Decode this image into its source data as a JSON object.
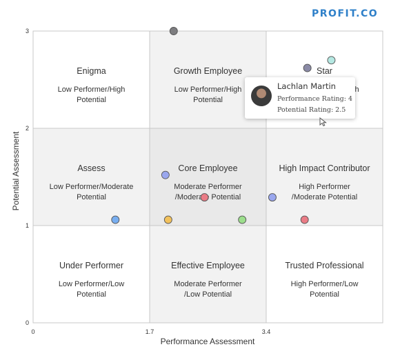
{
  "brand": {
    "logo_text": "PROFIT.CO",
    "color": "#2f80c9"
  },
  "chart_data": {
    "type": "scatter",
    "xlabel": "Performance Assessment",
    "ylabel": "Potential Assessment",
    "x_ticks": [
      "0",
      "1.7",
      "3.4"
    ],
    "y_ticks": [
      "0",
      "1",
      "2",
      "3"
    ],
    "xlim": [
      0,
      5.1
    ],
    "ylim": [
      0,
      3
    ],
    "grid": {
      "x": [
        1.7,
        3.4
      ],
      "y": [
        1,
        2
      ]
    },
    "cells": [
      {
        "col": 0,
        "row": 2,
        "title": "Enigma",
        "desc1": "Low Performer/High",
        "desc2": "Potential",
        "shade": "#ffffff"
      },
      {
        "col": 1,
        "row": 2,
        "title": "Growth Employee",
        "desc1": "Low Performer/High",
        "desc2": "Potential",
        "shade": "#f2f2f2"
      },
      {
        "col": 2,
        "row": 2,
        "title": "Star",
        "desc1": "High Performer/High",
        "desc2": "Potential",
        "shade": "#ffffff"
      },
      {
        "col": 0,
        "row": 1,
        "title": "Assess",
        "desc1": "Low Performer/Moderate",
        "desc2": "Potential",
        "shade": "#f2f2f2"
      },
      {
        "col": 1,
        "row": 1,
        "title": "Core Employee",
        "desc1": "Moderate Performer",
        "desc2": "/Moderate Potential",
        "shade": "#e9e9e9"
      },
      {
        "col": 2,
        "row": 1,
        "title": "High Impact Contributor",
        "desc1": "High Performer",
        "desc2": "/Moderate Potential",
        "shade": "#f2f2f2"
      },
      {
        "col": 0,
        "row": 0,
        "title": "Under Performer",
        "desc1": "Low Performer/Low",
        "desc2": "Potential",
        "shade": "#ffffff"
      },
      {
        "col": 1,
        "row": 0,
        "title": "Effective Employee",
        "desc1": "Moderate Performer",
        "desc2": "/Low Potential",
        "shade": "#f2f2f2"
      },
      {
        "col": 2,
        "row": 0,
        "title": "Trusted Professional",
        "desc1": "High Performer/Low",
        "desc2": "Potential",
        "shade": "#ffffff"
      }
    ],
    "points": [
      {
        "x": 2.05,
        "y": 3.0,
        "color": "#7d7d80"
      },
      {
        "x": 4.0,
        "y": 2.62,
        "color": "#8a8aa6"
      },
      {
        "x": 4.35,
        "y": 2.7,
        "color": "#b5e8e2"
      },
      {
        "x": 1.93,
        "y": 1.52,
        "color": "#9aa7ee"
      },
      {
        "x": 2.5,
        "y": 1.29,
        "color": "#ea7c86"
      },
      {
        "x": 3.49,
        "y": 1.29,
        "color": "#9aa7ee"
      },
      {
        "x": 1.2,
        "y": 1.06,
        "color": "#78aef0"
      },
      {
        "x": 1.97,
        "y": 1.06,
        "color": "#f2c15c"
      },
      {
        "x": 3.05,
        "y": 1.06,
        "color": "#9cde8c"
      },
      {
        "x": 3.96,
        "y": 1.06,
        "color": "#ea7c86"
      }
    ]
  },
  "tooltip": {
    "name": "Lachlan Martin",
    "line1": "Performance Rating: 4",
    "line2": "Potential Rating: 2.5"
  }
}
